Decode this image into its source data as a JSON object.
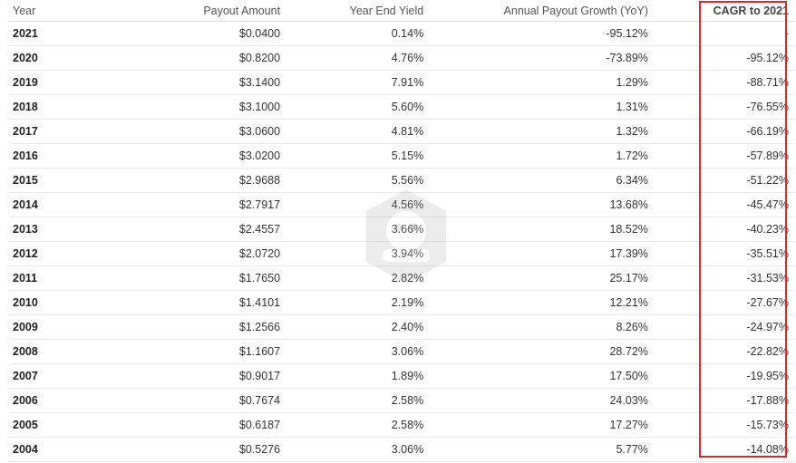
{
  "table": {
    "headers": {
      "year": "Year",
      "payout_amount": "Payout Amount",
      "year_end_yield": "Year End Yield",
      "annual_payout_growth": "Annual Payout Growth (YoY)",
      "cagr": "CAGR to 2021"
    },
    "rows": [
      {
        "year": "2021",
        "payout": "$0.0400",
        "yield": "0.14%",
        "growth": "-95.12%",
        "cagr": "-"
      },
      {
        "year": "2020",
        "payout": "$0.8200",
        "yield": "4.76%",
        "growth": "-73.89%",
        "cagr": "-95.12%"
      },
      {
        "year": "2019",
        "payout": "$3.1400",
        "yield": "7.91%",
        "growth": "1.29%",
        "cagr": "-88.71%"
      },
      {
        "year": "2018",
        "payout": "$3.1000",
        "yield": "5.60%",
        "growth": "1.31%",
        "cagr": "-76.55%"
      },
      {
        "year": "2017",
        "payout": "$3.0600",
        "yield": "4.81%",
        "growth": "1.32%",
        "cagr": "-66.19%"
      },
      {
        "year": "2016",
        "payout": "$3.0200",
        "yield": "5.15%",
        "growth": "1.72%",
        "cagr": "-57.89%"
      },
      {
        "year": "2015",
        "payout": "$2.9688",
        "yield": "5.56%",
        "growth": "6.34%",
        "cagr": "-51.22%"
      },
      {
        "year": "2014",
        "payout": "$2.7917",
        "yield": "4.56%",
        "growth": "13.68%",
        "cagr": "-45.47%"
      },
      {
        "year": "2013",
        "payout": "$2.4557",
        "yield": "3.66%",
        "growth": "18.52%",
        "cagr": "-40.23%"
      },
      {
        "year": "2012",
        "payout": "$2.0720",
        "yield": "3.94%",
        "growth": "17.39%",
        "cagr": "-35.51%"
      },
      {
        "year": "2011",
        "payout": "$1.7650",
        "yield": "2.82%",
        "growth": "25.17%",
        "cagr": "-31.53%"
      },
      {
        "year": "2010",
        "payout": "$1.4101",
        "yield": "2.19%",
        "growth": "12.21%",
        "cagr": "-27.67%"
      },
      {
        "year": "2009",
        "payout": "$1.2566",
        "yield": "2.40%",
        "growth": "8.26%",
        "cagr": "-24.97%"
      },
      {
        "year": "2008",
        "payout": "$1.1607",
        "yield": "3.06%",
        "growth": "28.72%",
        "cagr": "-22.82%"
      },
      {
        "year": "2007",
        "payout": "$0.9017",
        "yield": "1.89%",
        "growth": "17.50%",
        "cagr": "-19.95%"
      },
      {
        "year": "2006",
        "payout": "$0.7674",
        "yield": "2.58%",
        "growth": "24.03%",
        "cagr": "-17.88%"
      },
      {
        "year": "2005",
        "payout": "$0.6187",
        "yield": "2.58%",
        "growth": "17.27%",
        "cagr": "-15.73%"
      },
      {
        "year": "2004",
        "payout": "$0.5276",
        "yield": "3.06%",
        "growth": "5.77%",
        "cagr": "-14.08%"
      }
    ]
  },
  "highlight": {
    "color": "#d62b2b",
    "target": "cagr-column"
  },
  "watermark": {
    "icon": "logo-watermark-icon"
  }
}
